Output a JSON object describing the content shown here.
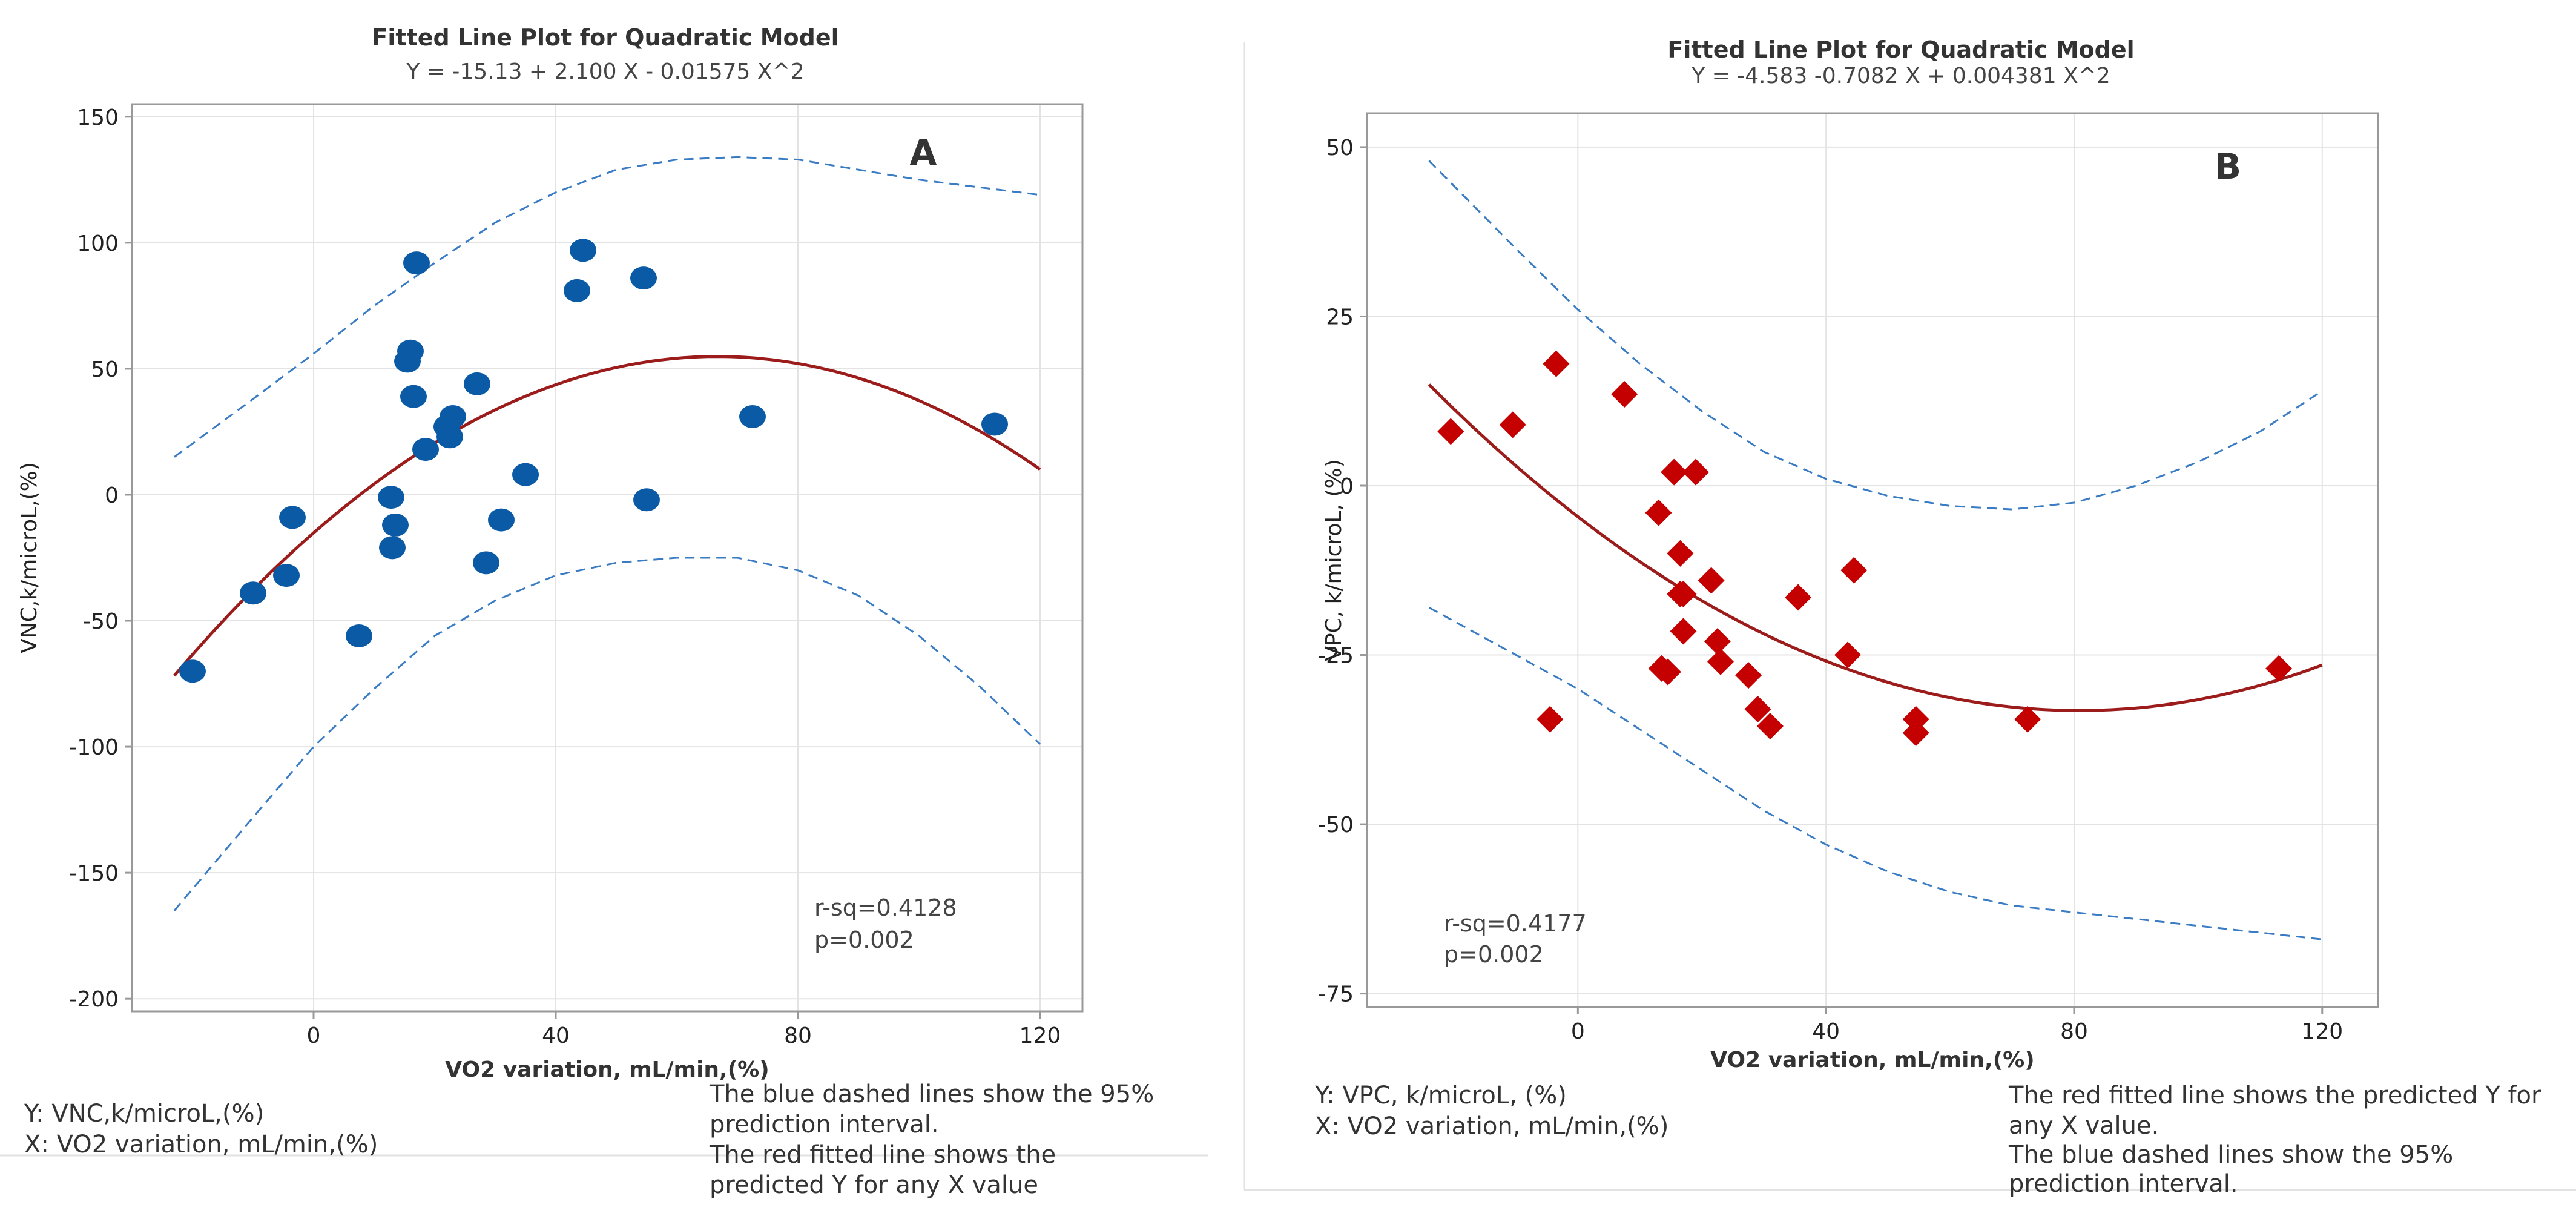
{
  "chart_data": [
    {
      "type": "scatter",
      "panel_label": "A",
      "title": "Fitted Line Plot for Quadratic Model",
      "subtitle": "Y = -15.13 + 2.100 X - 0.01575 X^2",
      "xlabel": "VO2 variation, mL/min,(%)",
      "ylabel": "VNC,k/microL,(%)",
      "xlim": [
        -30,
        127
      ],
      "ylim": [
        -205,
        155
      ],
      "xticks": [
        0,
        40,
        80,
        120
      ],
      "xtick_labels": [
        "0",
        "40",
        "80",
        "120"
      ],
      "yticks": [
        150,
        100,
        50,
        0,
        -50,
        -100,
        -150,
        -200
      ],
      "ytick_labels": [
        "150",
        "100",
        "50",
        "0",
        "-50",
        "-100",
        "-150",
        "-200"
      ],
      "grid": true,
      "marker": "circle",
      "marker_color": "#0a5aa6",
      "fit_color": "#9c1b1b",
      "pi_color": "#3a7cc4",
      "fit_coefficients": [
        -15.13,
        2.1,
        -0.01575
      ],
      "fit_range": [
        -23,
        120
      ],
      "pi_upper": {
        "x": [
          -23,
          -10,
          0,
          10,
          20,
          30,
          40,
          50,
          60,
          70,
          80,
          90,
          100,
          110,
          120
        ],
        "y": [
          15,
          38,
          56,
          75,
          92,
          108,
          120,
          129,
          133,
          134,
          133,
          129,
          125,
          122,
          119
        ]
      },
      "pi_lower": {
        "x": [
          -23,
          -10,
          0,
          10,
          20,
          30,
          40,
          50,
          60,
          70,
          80,
          90,
          100,
          110,
          120
        ],
        "y": [
          -165,
          -128,
          -100,
          -77,
          -56,
          -42,
          -32,
          -27,
          -25,
          -25,
          -30,
          -40,
          -56,
          -76,
          -99
        ]
      },
      "points": {
        "x": [
          -20,
          -10,
          -4.5,
          -3.5,
          7.5,
          12.8,
          13,
          13.5,
          15.5,
          16,
          16.5,
          17,
          18.5,
          22,
          22.5,
          23,
          27,
          28.5,
          31,
          35,
          43.5,
          44.5,
          54.5,
          55,
          72.5,
          112.5
        ],
        "y": [
          -70,
          -39,
          -32,
          -9,
          -56,
          -1,
          -21,
          -12,
          53,
          57,
          39,
          92,
          18,
          27,
          23,
          31,
          44,
          -27,
          -10,
          8,
          81,
          97,
          86,
          -2,
          31,
          28
        ]
      },
      "stats": {
        "r_sq": "r-sq=0.4128",
        "p": "p=0.002"
      },
      "legend": {
        "y_var": "Y: VNC,k/microL,(%)",
        "x_var": "X: VO2 variation, mL/min,(%)",
        "notes": [
          "The blue dashed lines show the 95%",
          "prediction interval.",
          "The red fitted line shows the",
          "predicted Y for any X value"
        ]
      }
    },
    {
      "type": "scatter",
      "panel_label": "B",
      "title": "Fitted Line Plot for Quadratic Model",
      "subtitle": "Y = -4.583 -0.7082 X + 0.004381 X^2",
      "xlabel": "VO2 variation, mL/min,(%)",
      "ylabel": "VPC, k/microL, (%)",
      "xlim": [
        -34,
        129
      ],
      "ylim": [
        -77,
        55
      ],
      "xticks": [
        0,
        40,
        80,
        120
      ],
      "xtick_labels": [
        "0",
        "40",
        "80",
        "120"
      ],
      "yticks": [
        50,
        25,
        0,
        -25,
        -50,
        -75
      ],
      "ytick_labels": [
        "50",
        "25",
        "0",
        "-25",
        "-50",
        "-75"
      ],
      "grid": true,
      "marker": "diamond",
      "marker_color": "#c40000",
      "fit_color": "#9c1b1b",
      "pi_color": "#3a7cc4",
      "fit_coefficients": [
        -4.583,
        -0.7082,
        0.004381
      ],
      "fit_range": [
        -24,
        120
      ],
      "pi_upper": {
        "x": [
          -24,
          -10,
          0,
          10,
          20,
          30,
          40,
          50,
          60,
          70,
          80,
          90,
          100,
          110,
          120
        ],
        "y": [
          48,
          35,
          26,
          18,
          11,
          5,
          1,
          -1.5,
          -3,
          -3.5,
          -2.5,
          0,
          3.5,
          8,
          14
        ]
      },
      "pi_lower": {
        "x": [
          -24,
          -10,
          0,
          10,
          20,
          30,
          40,
          50,
          60,
          70,
          80,
          90,
          100,
          110,
          120
        ],
        "y": [
          -18,
          -25,
          -30,
          -36,
          -42,
          -48,
          -53,
          -57,
          -60,
          -62,
          -63,
          -64,
          -65,
          -66,
          -67
        ]
      },
      "points": {
        "x": [
          -20.5,
          -10.5,
          -3.5,
          -4.5,
          7.5,
          13,
          13.5,
          14.5,
          15.5,
          16.5,
          16.5,
          17,
          17,
          19,
          21.5,
          22.5,
          23,
          27.5,
          29,
          31,
          35.5,
          43.5,
          44.5,
          54.5,
          54.5,
          72.5,
          113
        ],
        "y": [
          8,
          9,
          18,
          -34.5,
          13.5,
          -4,
          -27,
          -27.5,
          2,
          -10,
          -16,
          -21.5,
          -16,
          2,
          -14,
          -23,
          -26,
          -28,
          -33,
          -35.5,
          -16.5,
          -25,
          -12.5,
          -34.5,
          -36.5,
          -34.5,
          -27
        ]
      },
      "stats": {
        "r_sq": "r-sq=0.4177",
        "p": "p=0.002"
      },
      "legend": {
        "y_var": "Y: VPC, k/microL, (%)",
        "x_var": "X: VO2 variation, mL/min,(%)",
        "notes": [
          "The red fitted line shows the predicted Y for",
          "any X value.",
          "The blue dashed lines show the 95%",
          "prediction interval."
        ]
      }
    }
  ]
}
